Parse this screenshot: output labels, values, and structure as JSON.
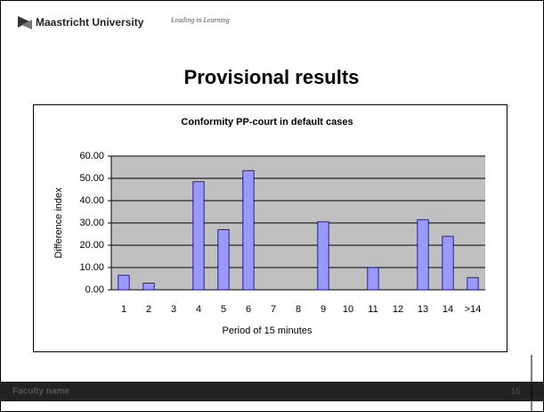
{
  "header": {
    "university": "Maastricht University",
    "slogan": "Leading in Learning"
  },
  "slide_title": "Provisional results",
  "chart_data": {
    "type": "bar",
    "title": "Conformity PP-court in default cases",
    "x_label": "Period of 15 minutes",
    "y_label": "Difference index",
    "categories": [
      "1",
      "2",
      "3",
      "4",
      "5",
      "6",
      "7",
      "8",
      "9",
      "10",
      "11",
      "12",
      "13",
      "14",
      ">14"
    ],
    "values": [
      6.5,
      3,
      0,
      48.5,
      27,
      53.5,
      0,
      0,
      30.5,
      0,
      10,
      0,
      31.5,
      24,
      5.5
    ],
    "color": "#9999ff",
    "ylim": [
      0,
      60
    ],
    "yticks": [
      {
        "value": 0,
        "label": "0.00"
      },
      {
        "value": 10,
        "label": "10.00"
      },
      {
        "value": 20,
        "label": "20.00"
      },
      {
        "value": 30,
        "label": "30.00"
      },
      {
        "value": 40,
        "label": "40.00"
      },
      {
        "value": 50,
        "label": "50.00"
      },
      {
        "value": 60,
        "label": "60.00"
      }
    ],
    "grid": true
  },
  "footer": {
    "faculty": "Faculty name",
    "page": "15"
  }
}
